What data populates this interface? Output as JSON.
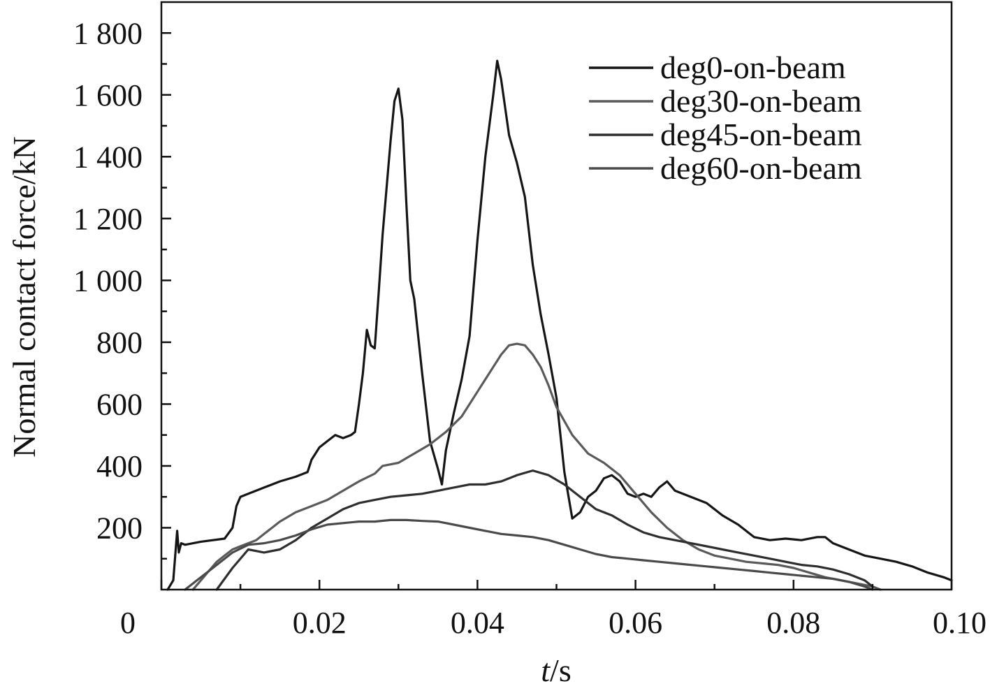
{
  "chart_data": {
    "type": "line",
    "xlabel_italic": "t",
    "xlabel_unit": "/s",
    "ylabel": "Normal contact force/kN",
    "xlim": [
      0,
      0.1
    ],
    "ylim": [
      0,
      1900
    ],
    "x_ticks": [
      {
        "value": 0,
        "label": "0"
      },
      {
        "value": 0.02,
        "label": "0.02"
      },
      {
        "value": 0.04,
        "label": "0.04"
      },
      {
        "value": 0.06,
        "label": "0.06"
      },
      {
        "value": 0.08,
        "label": "0.08"
      },
      {
        "value": 0.1,
        "label": "0.10"
      }
    ],
    "y_ticks": [
      {
        "value": 200,
        "label": "200"
      },
      {
        "value": 400,
        "label": "400"
      },
      {
        "value": 600,
        "label": "600"
      },
      {
        "value": 800,
        "label": "800"
      },
      {
        "value": 1000,
        "label": "1 000"
      },
      {
        "value": 1200,
        "label": "1 200"
      },
      {
        "value": 1400,
        "label": "1 400"
      },
      {
        "value": 1600,
        "label": "1 600"
      },
      {
        "value": 1800,
        "label": "1 800"
      }
    ],
    "legend_position": "top-right",
    "series": [
      {
        "name": "deg0-on-beam",
        "color": "#151515",
        "x": [
          0.0008,
          0.0015,
          0.002,
          0.0022,
          0.0025,
          0.003,
          0.005,
          0.008,
          0.009,
          0.0095,
          0.01,
          0.011,
          0.013,
          0.015,
          0.017,
          0.0185,
          0.019,
          0.02,
          0.021,
          0.022,
          0.023,
          0.024,
          0.0245,
          0.025,
          0.0255,
          0.026,
          0.0265,
          0.027,
          0.0275,
          0.028,
          0.029,
          0.0295,
          0.03,
          0.0305,
          0.031,
          0.0315,
          0.032,
          0.033,
          0.034,
          0.035,
          0.0355,
          0.036,
          0.037,
          0.038,
          0.039,
          0.04,
          0.041,
          0.042,
          0.0425,
          0.043,
          0.044,
          0.045,
          0.046,
          0.047,
          0.048,
          0.049,
          0.05,
          0.051,
          0.052,
          0.053,
          0.054,
          0.055,
          0.056,
          0.057,
          0.058,
          0.059,
          0.06,
          0.061,
          0.062,
          0.063,
          0.064,
          0.065,
          0.067,
          0.069,
          0.071,
          0.073,
          0.075,
          0.077,
          0.079,
          0.081,
          0.083,
          0.084,
          0.085,
          0.087,
          0.089,
          0.091,
          0.093,
          0.095,
          0.097,
          0.099,
          0.1
        ],
        "y": [
          0,
          30,
          190,
          120,
          150,
          145,
          155,
          165,
          200,
          270,
          300,
          310,
          330,
          350,
          365,
          380,
          420,
          460,
          480,
          500,
          490,
          500,
          510,
          600,
          700,
          840,
          790,
          780,
          960,
          1150,
          1450,
          1580,
          1620,
          1520,
          1250,
          1000,
          940,
          700,
          480,
          390,
          340,
          450,
          570,
          680,
          820,
          1130,
          1400,
          1600,
          1710,
          1650,
          1470,
          1380,
          1270,
          1050,
          890,
          760,
          620,
          380,
          230,
          250,
          300,
          320,
          360,
          370,
          350,
          310,
          300,
          310,
          300,
          330,
          350,
          320,
          300,
          280,
          240,
          210,
          170,
          160,
          165,
          160,
          170,
          170,
          150,
          130,
          110,
          100,
          90,
          75,
          55,
          40,
          30
        ]
      },
      {
        "name": "deg30-on-beam",
        "color": "#5a5a5a",
        "x": [
          0.004,
          0.005,
          0.006,
          0.007,
          0.008,
          0.009,
          0.01,
          0.011,
          0.012,
          0.013,
          0.014,
          0.015,
          0.017,
          0.019,
          0.021,
          0.023,
          0.025,
          0.027,
          0.028,
          0.03,
          0.032,
          0.034,
          0.036,
          0.038,
          0.04,
          0.041,
          0.042,
          0.043,
          0.044,
          0.045,
          0.046,
          0.047,
          0.048,
          0.049,
          0.05,
          0.052,
          0.054,
          0.056,
          0.058,
          0.06,
          0.062,
          0.064,
          0.066,
          0.068,
          0.07,
          0.072,
          0.074,
          0.076,
          0.078,
          0.08,
          0.082,
          0.084,
          0.086,
          0.088,
          0.09,
          0.091
        ],
        "y": [
          0,
          30,
          60,
          90,
          110,
          130,
          140,
          150,
          160,
          180,
          200,
          220,
          250,
          270,
          290,
          320,
          350,
          375,
          400,
          410,
          440,
          470,
          510,
          560,
          640,
          680,
          720,
          760,
          790,
          795,
          790,
          760,
          720,
          660,
          590,
          500,
          440,
          410,
          370,
          310,
          250,
          200,
          160,
          130,
          110,
          100,
          90,
          85,
          80,
          70,
          55,
          40,
          30,
          20,
          10,
          0
        ]
      },
      {
        "name": "deg45-on-beam",
        "color": "#2e2e2e",
        "x": [
          0.007,
          0.009,
          0.011,
          0.013,
          0.015,
          0.017,
          0.019,
          0.021,
          0.023,
          0.025,
          0.027,
          0.029,
          0.031,
          0.033,
          0.035,
          0.037,
          0.039,
          0.041,
          0.043,
          0.045,
          0.047,
          0.049,
          0.051,
          0.053,
          0.055,
          0.057,
          0.059,
          0.061,
          0.063,
          0.065,
          0.067,
          0.069,
          0.071,
          0.073,
          0.075,
          0.077,
          0.079,
          0.081,
          0.083,
          0.085,
          0.087,
          0.089,
          0.09
        ],
        "y": [
          0,
          70,
          130,
          120,
          130,
          160,
          200,
          230,
          260,
          280,
          290,
          300,
          305,
          310,
          320,
          330,
          340,
          340,
          350,
          370,
          385,
          370,
          340,
          300,
          260,
          240,
          210,
          185,
          170,
          160,
          150,
          140,
          130,
          120,
          110,
          100,
          90,
          80,
          75,
          65,
          50,
          30,
          10
        ]
      },
      {
        "name": "deg60-on-beam",
        "color": "#4a4a4a",
        "x": [
          0.003,
          0.005,
          0.007,
          0.009,
          0.011,
          0.013,
          0.015,
          0.017,
          0.019,
          0.021,
          0.023,
          0.025,
          0.027,
          0.029,
          0.031,
          0.033,
          0.035,
          0.037,
          0.039,
          0.041,
          0.043,
          0.045,
          0.047,
          0.049,
          0.051,
          0.053,
          0.055,
          0.057,
          0.059,
          0.061,
          0.063,
          0.065,
          0.067,
          0.069,
          0.071,
          0.073,
          0.075,
          0.077,
          0.079,
          0.081,
          0.083,
          0.085,
          0.087,
          0.089,
          0.09
        ],
        "y": [
          0,
          40,
          80,
          120,
          145,
          150,
          160,
          175,
          195,
          210,
          215,
          220,
          220,
          225,
          225,
          222,
          220,
          210,
          200,
          190,
          180,
          175,
          170,
          160,
          145,
          130,
          115,
          105,
          100,
          95,
          90,
          85,
          80,
          75,
          70,
          65,
          60,
          55,
          50,
          45,
          40,
          35,
          25,
          10,
          0
        ]
      }
    ]
  }
}
